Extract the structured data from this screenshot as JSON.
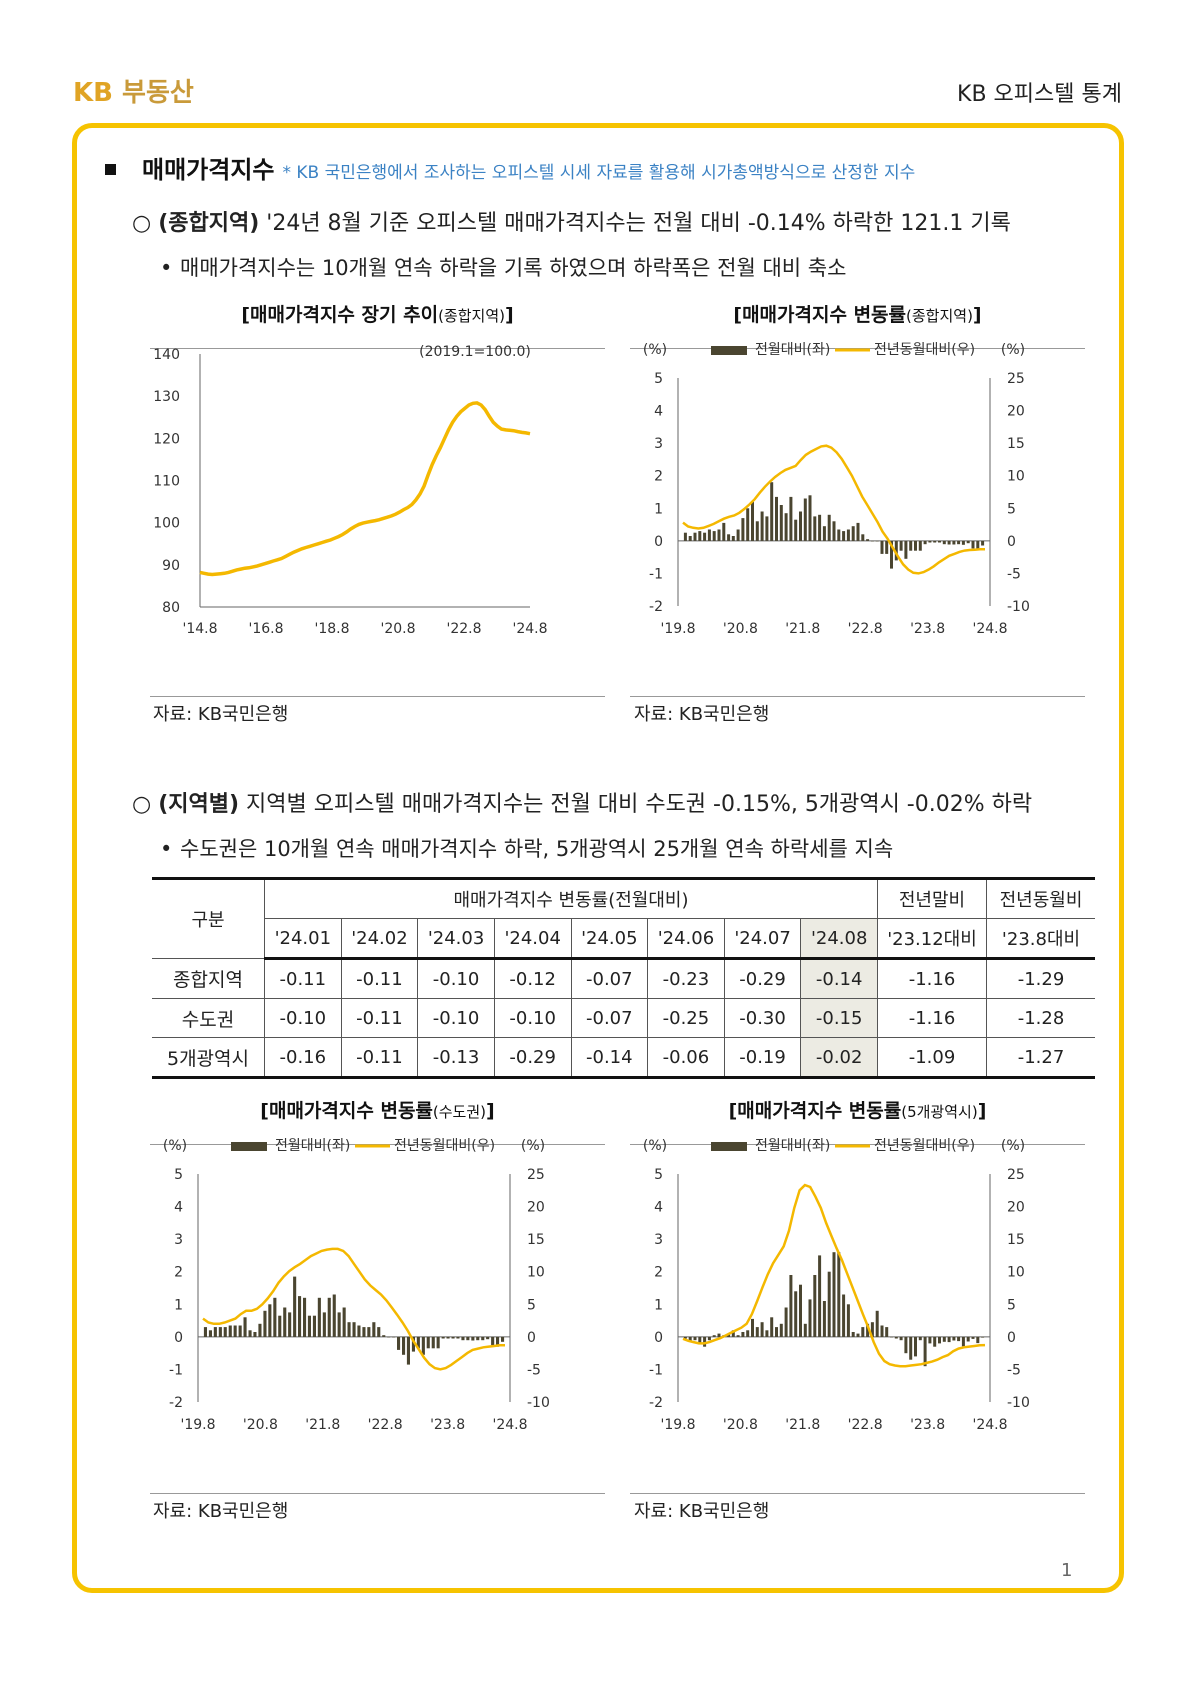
{
  "header": {
    "logo_kb": "KB",
    "logo_rest": "부동산",
    "right": "KB 오피스텔 통계"
  },
  "section": {
    "title": "매매가격지수",
    "note": "* KB 국민은행에서 조사하는 오피스텔 시세 자료를 활용해 시가총액방식으로 산정한 지수"
  },
  "para1": {
    "marker": "○",
    "bold": "(종합지역)",
    "text": " '24년 8월 기준 오피스텔 매매가격지수는 전월 대비 -0.14% 하락한 121.1 기록",
    "bullet": "매매가격지수는 10개월 연속 하락을 기록 하였으며 하락폭은 전월 대비 축소"
  },
  "para2": {
    "marker": "○",
    "bold": "(지역별)",
    "text": " 지역별 오피스텔 매매가격지수는 전월 대비 수도권 -0.15%, 5개광역시 -0.02% 하락",
    "bullet": "수도권은 10개월 연속 매매가격지수 하락, 5개광역시 25개월 연속 하락세를 지속"
  },
  "chart_titles": {
    "c1_main": "[매매가격지수 장기 추이",
    "c1_sub": "(종합지역)",
    "c2_main": "[매매가격지수 변동률",
    "c2_sub": "(종합지역)",
    "c3_main": "[매매가격지수 변동률",
    "c3_sub": "(수도권)",
    "c4_main": "[매매가격지수 변동률",
    "c4_sub": "(5개광역시)",
    "close": "]"
  },
  "source": "자료: KB국민은행",
  "legend": {
    "bar": "전월대비(좌)",
    "line": "전년동월대비(우)",
    "unit_left": "(%)",
    "unit_right": "(%)"
  },
  "table": {
    "corner": "구분",
    "group": "매매가격지수 변동률(전월대비)",
    "col_a": "전년말비",
    "col_b": "전년동월비",
    "months": [
      "'24.01",
      "'24.02",
      "'24.03",
      "'24.04",
      "'24.05",
      "'24.06",
      "'24.07",
      "'24.08"
    ],
    "sub_a": "'23.12대비",
    "sub_b": "'23.8대비",
    "rows": [
      {
        "name": "종합지역",
        "vals": [
          "-0.11",
          "-0.11",
          "-0.10",
          "-0.12",
          "-0.07",
          "-0.23",
          "-0.29",
          "-0.14"
        ],
        "a": "-1.16",
        "b": "-1.29"
      },
      {
        "name": "수도권",
        "vals": [
          "-0.10",
          "-0.11",
          "-0.10",
          "-0.10",
          "-0.07",
          "-0.25",
          "-0.30",
          "-0.15"
        ],
        "a": "-1.16",
        "b": "-1.28"
      },
      {
        "name": "5개광역시",
        "vals": [
          "-0.16",
          "-0.11",
          "-0.13",
          "-0.29",
          "-0.14",
          "-0.06",
          "-0.19",
          "-0.02"
        ],
        "a": "-1.09",
        "b": "-1.27"
      }
    ]
  },
  "page_number": "1",
  "colors": {
    "accent": "#f6c300",
    "bar": "#4a4530",
    "line": "#f4b800",
    "note": "#3b82c4",
    "highlight": "#ecebe3"
  },
  "chart_data": [
    {
      "type": "line",
      "title": "[매매가격지수 장기 추이(종합지역)]",
      "annotation": "(2019.1=100.0)",
      "x_ticks": [
        "'14.8",
        "'16.8",
        "'18.8",
        "'20.8",
        "'22.8",
        "'24.8"
      ],
      "y_ticks": [
        80,
        90,
        100,
        110,
        120,
        130,
        140
      ],
      "ylim": [
        80,
        140
      ],
      "series": [
        {
          "values": [
            88.2,
            88.0,
            87.8,
            87.7,
            87.8,
            87.9,
            88.0,
            88.2,
            88.5,
            88.8,
            89.0,
            89.2,
            89.3,
            89.5,
            89.7,
            90.0,
            90.3,
            90.6,
            90.9,
            91.2,
            91.5,
            92.0,
            92.5,
            93.0,
            93.4,
            93.8,
            94.1,
            94.4,
            94.7,
            95.0,
            95.3,
            95.6,
            95.9,
            96.3,
            96.7,
            97.2,
            97.8,
            98.5,
            99.1,
            99.6,
            99.9,
            100.1,
            100.3,
            100.5,
            100.7,
            101.0,
            101.3,
            101.6,
            102.0,
            102.5,
            103.1,
            103.6,
            104.3,
            105.4,
            106.8,
            108.7,
            111.3,
            113.8,
            115.9,
            117.8,
            119.9,
            122.0,
            123.8,
            125.2,
            126.3,
            127.1,
            127.9,
            128.3,
            128.4,
            127.9,
            126.8,
            125.2,
            123.8,
            122.9,
            122.2,
            122.0,
            121.9,
            121.8,
            121.6,
            121.4,
            121.3,
            121.1
          ]
        }
      ]
    },
    {
      "type": "bar+line",
      "title": "[매매가격지수 변동률(종합지역)]",
      "x_ticks": [
        "'19.8",
        "'20.8",
        "'21.8",
        "'22.8",
        "'23.8",
        "'24.8"
      ],
      "y_left": [
        -2,
        -1,
        0,
        1,
        2,
        3,
        4,
        5
      ],
      "y_right": [
        -10,
        -5,
        0,
        5,
        10,
        15,
        20,
        25
      ],
      "ylim_left": [
        -2,
        5
      ],
      "ylim_right": [
        -10,
        25
      ],
      "series": [
        {
          "name": "전월대비(좌)",
          "axis": "left",
          "values": [
            0.25,
            0.15,
            0.25,
            0.3,
            0.25,
            0.35,
            0.3,
            0.35,
            0.55,
            0.2,
            0.15,
            0.35,
            0.7,
            1.0,
            1.2,
            0.6,
            0.9,
            0.75,
            1.8,
            1.35,
            1.1,
            0.85,
            1.35,
            0.65,
            0.9,
            1.3,
            1.4,
            0.75,
            0.8,
            0.45,
            0.8,
            0.6,
            0.35,
            0.3,
            0.35,
            0.45,
            0.55,
            0.2,
            0.05,
            0.0,
            0.0,
            -0.4,
            -0.4,
            -0.85,
            -0.6,
            -0.3,
            -0.55,
            -0.3,
            -0.3,
            -0.3,
            -0.1,
            -0.05,
            -0.05,
            -0.05,
            -0.1,
            -0.11,
            -0.11,
            -0.1,
            -0.12,
            -0.07,
            -0.23,
            -0.29,
            -0.14
          ]
        },
        {
          "name": "전년동월대비(우)",
          "axis": "right",
          "values": [
            2.8,
            2.2,
            2.0,
            1.9,
            2.0,
            2.3,
            2.6,
            3.0,
            3.4,
            3.7,
            3.9,
            4.3,
            4.9,
            5.6,
            6.4,
            7.4,
            8.3,
            9.1,
            9.8,
            10.4,
            10.9,
            11.2,
            11.5,
            12.4,
            13.2,
            13.7,
            14.1,
            14.5,
            14.6,
            14.3,
            13.6,
            12.6,
            11.3,
            10.0,
            8.4,
            6.8,
            5.5,
            4.2,
            2.9,
            1.4,
            0.3,
            -1.1,
            -2.4,
            -3.6,
            -4.4,
            -4.9,
            -5.0,
            -4.8,
            -4.4,
            -3.9,
            -3.3,
            -2.8,
            -2.3,
            -2.0,
            -1.7,
            -1.5,
            -1.4,
            -1.35,
            -1.3,
            -1.29
          ]
        }
      ]
    },
    {
      "type": "bar+line",
      "title": "[매매가격지수 변동률(수도권)]",
      "x_ticks": [
        "'19.8",
        "'20.8",
        "'21.8",
        "'22.8",
        "'23.8",
        "'24.8"
      ],
      "y_left": [
        -2,
        -1,
        0,
        1,
        2,
        3,
        4,
        5
      ],
      "y_right": [
        -10,
        -5,
        0,
        5,
        10,
        15,
        20,
        25
      ],
      "ylim_left": [
        -2,
        5
      ],
      "ylim_right": [
        -10,
        25
      ],
      "series": [
        {
          "name": "전월대비(좌)",
          "axis": "left",
          "values": [
            0.3,
            0.2,
            0.3,
            0.3,
            0.3,
            0.35,
            0.35,
            0.35,
            0.6,
            0.2,
            0.15,
            0.4,
            0.8,
            1.0,
            1.2,
            0.65,
            0.9,
            0.75,
            1.85,
            1.25,
            1.2,
            0.65,
            0.65,
            1.2,
            0.75,
            1.2,
            1.3,
            0.75,
            0.9,
            0.45,
            0.45,
            0.35,
            0.3,
            0.3,
            0.45,
            0.3,
            0.05,
            0.0,
            0.0,
            -0.4,
            -0.55,
            -0.85,
            -0.45,
            -0.35,
            -0.55,
            -0.35,
            -0.35,
            -0.35,
            -0.05,
            -0.05,
            -0.05,
            -0.05,
            -0.1,
            -0.1,
            -0.11,
            -0.1,
            -0.1,
            -0.07,
            -0.25,
            -0.3,
            -0.15
          ]
        },
        {
          "name": "전년동월대비(우)",
          "axis": "right",
          "values": [
            2.8,
            2.2,
            2.0,
            2.0,
            2.2,
            2.5,
            2.8,
            3.5,
            4.0,
            4.0,
            4.3,
            5.0,
            5.9,
            7.0,
            8.3,
            9.3,
            10.1,
            10.7,
            11.2,
            11.8,
            12.4,
            12.8,
            13.2,
            13.4,
            13.5,
            13.5,
            13.2,
            12.4,
            11.2,
            10.0,
            8.8,
            7.9,
            7.2,
            6.5,
            5.6,
            4.5,
            3.4,
            2.2,
            0.9,
            -0.6,
            -1.9,
            -3.2,
            -4.2,
            -4.8,
            -5.0,
            -4.8,
            -4.3,
            -3.7,
            -3.1,
            -2.5,
            -2.0,
            -1.8,
            -1.6,
            -1.5,
            -1.4,
            -1.3,
            -1.28
          ]
        }
      ]
    },
    {
      "type": "bar+line",
      "title": "[매매가격지수 변동률(5개광역시)]",
      "x_ticks": [
        "'19.8",
        "'20.8",
        "'21.8",
        "'22.8",
        "'23.8",
        "'24.8"
      ],
      "y_left": [
        -2,
        -1,
        0,
        1,
        2,
        3,
        4,
        5
      ],
      "y_right": [
        -10,
        -5,
        0,
        5,
        10,
        15,
        20,
        25
      ],
      "ylim_left": [
        -2,
        5
      ],
      "ylim_right": [
        -10,
        25
      ],
      "series": [
        {
          "name": "전월대비(좌)",
          "axis": "left",
          "values": [
            -0.05,
            -0.15,
            -0.1,
            -0.2,
            -0.3,
            -0.1,
            0.05,
            0.1,
            0.05,
            0.1,
            0.2,
            0.05,
            0.15,
            0.2,
            0.55,
            0.3,
            0.45,
            0.2,
            0.6,
            0.3,
            0.4,
            0.9,
            1.9,
            1.4,
            1.6,
            0.4,
            1.15,
            1.9,
            2.5,
            1.1,
            2.0,
            2.6,
            2.6,
            1.3,
            1.0,
            0.15,
            0.1,
            0.3,
            0.4,
            0.45,
            0.8,
            0.35,
            0.3,
            0.0,
            -0.05,
            -0.1,
            -0.5,
            -0.7,
            -0.6,
            -0.1,
            -0.9,
            -0.2,
            -0.3,
            -0.2,
            -0.15,
            -0.16,
            -0.11,
            -0.13,
            -0.29,
            -0.14,
            -0.06,
            -0.19,
            -0.02
          ]
        },
        {
          "name": "전년동월대비(우)",
          "axis": "right",
          "values": [
            -0.3,
            -0.6,
            -0.8,
            -1.0,
            -1.0,
            -0.8,
            -0.5,
            -0.2,
            0.2,
            0.6,
            1.0,
            1.4,
            2.0,
            3.5,
            5.5,
            7.6,
            9.6,
            11.3,
            12.6,
            13.9,
            16.3,
            19.8,
            22.5,
            23.3,
            23.0,
            21.5,
            19.8,
            17.5,
            15.5,
            13.6,
            11.8,
            9.7,
            7.6,
            5.5,
            3.4,
            1.4,
            -0.8,
            -2.6,
            -3.7,
            -4.2,
            -4.4,
            -4.5,
            -4.5,
            -4.4,
            -4.3,
            -4.2,
            -4.0,
            -3.8,
            -3.5,
            -3.1,
            -2.8,
            -2.2,
            -1.8,
            -1.6,
            -1.5,
            -1.4,
            -1.3,
            -1.27
          ]
        }
      ]
    }
  ]
}
